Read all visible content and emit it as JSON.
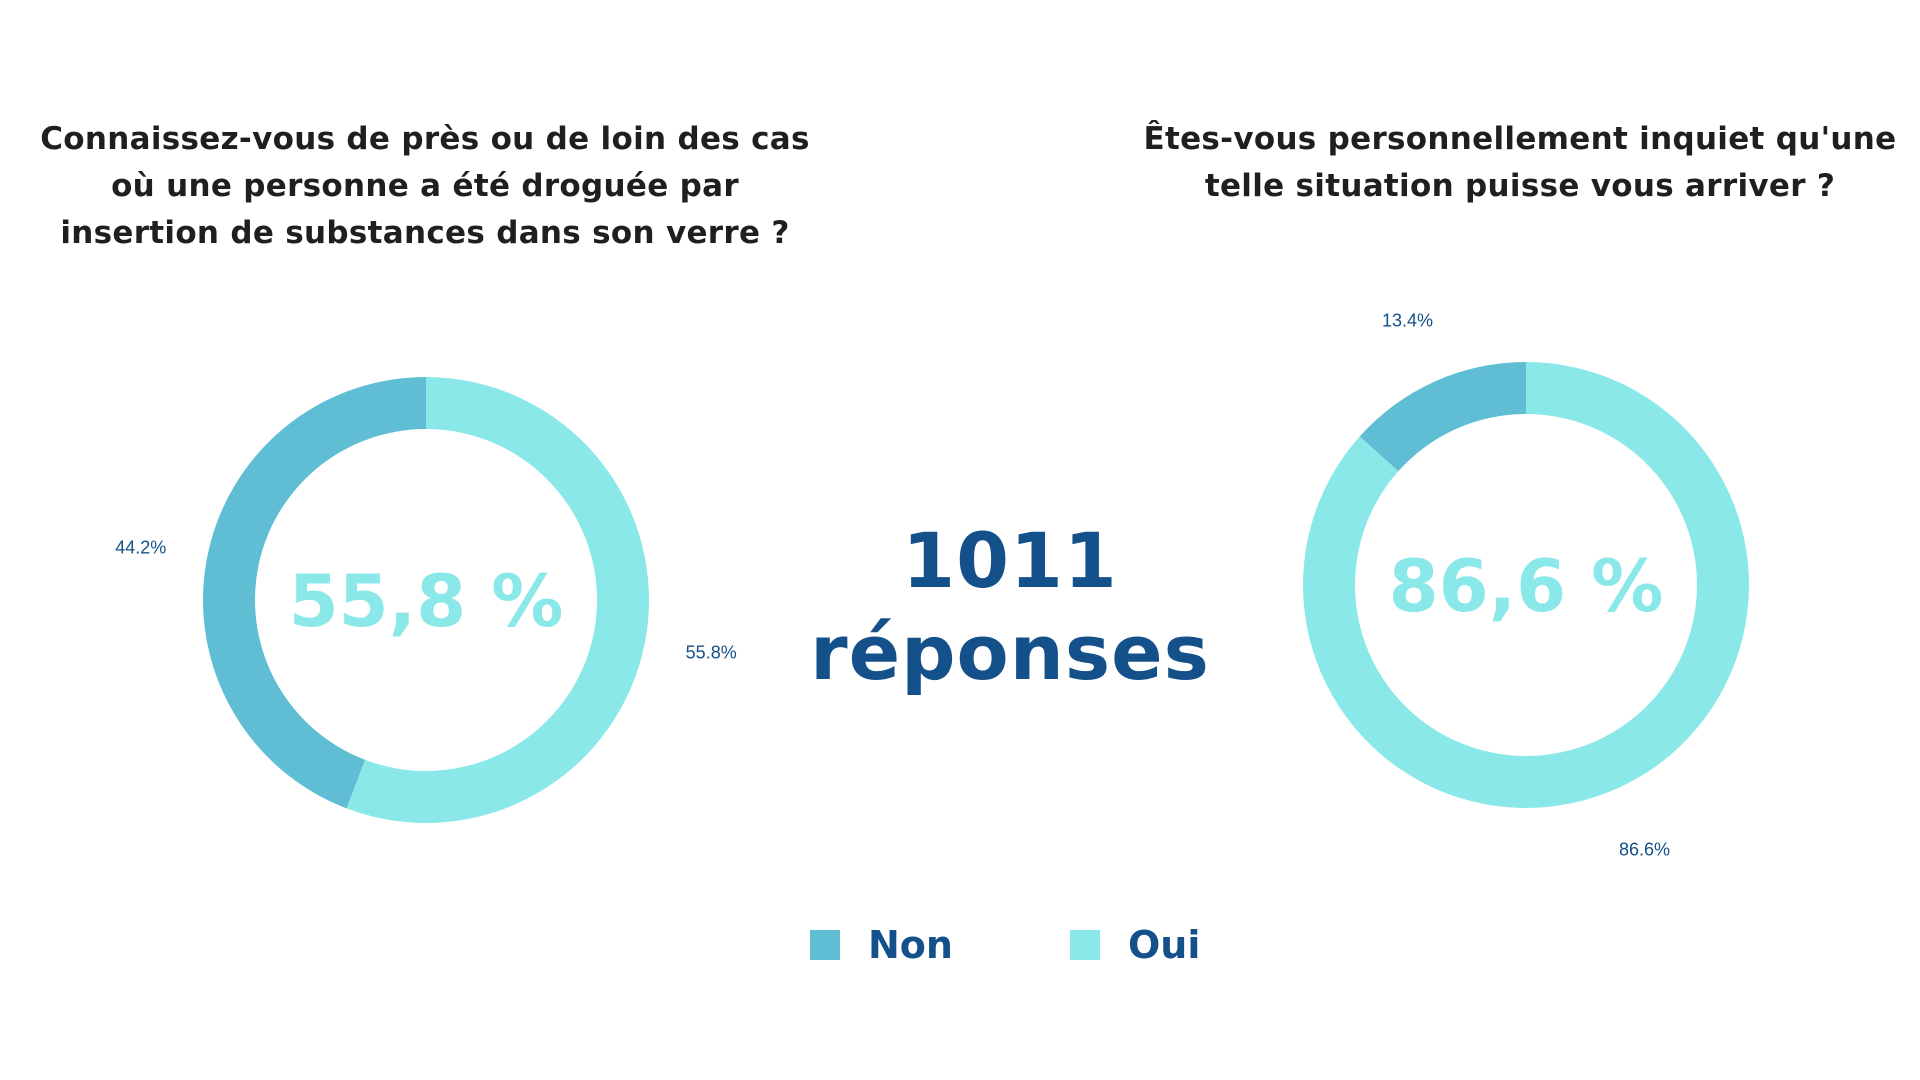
{
  "colors": {
    "non": "#5fbdd4",
    "oui": "#8ae9e8",
    "text_dark": "#1f1f1f",
    "accent_blue": "#14508a"
  },
  "total": {
    "number": "1011",
    "label": "réponses"
  },
  "legend": {
    "non": "Non",
    "oui": "Oui"
  },
  "chart_data": [
    {
      "type": "pie",
      "donut": true,
      "title": "Connaissez-vous de près ou de loin des cas\noù une personne a été droguée par\ninsertion de substances dans son verre ?",
      "center_text": "55,8 %",
      "slices": [
        {
          "name": "Oui",
          "value": 55.8,
          "label": "55.8%"
        },
        {
          "name": "Non",
          "value": 44.2,
          "label": "44.2%"
        }
      ]
    },
    {
      "type": "pie",
      "donut": true,
      "title": "Êtes-vous personnellement inquiet qu'une\ntelle situation puisse vous arriver ?",
      "center_text": "86,6 %",
      "slices": [
        {
          "name": "Oui",
          "value": 86.6,
          "label": "86.6%"
        },
        {
          "name": "Non",
          "value": 13.4,
          "label": "13.4%"
        }
      ]
    }
  ]
}
